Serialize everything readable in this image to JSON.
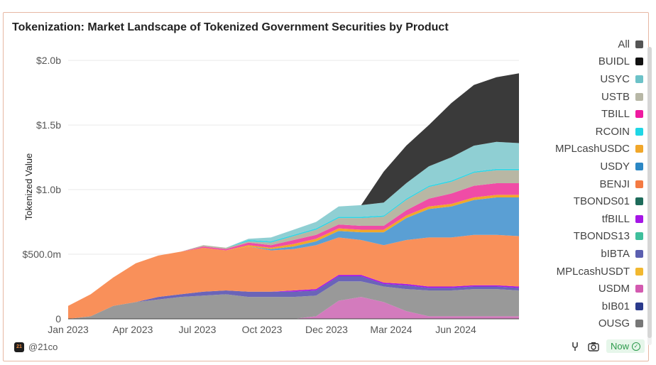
{
  "header": {
    "title": "Tokenization: Market Landscape of Tokenized Government Securities by Product"
  },
  "footer": {
    "source": "@21co",
    "status": "Now",
    "logo_text": "21"
  },
  "chart_data": {
    "type": "area",
    "ylabel": "Tokenized Value",
    "x_ticks": [
      "Jan 2023",
      "Apr 2023",
      "Jul 2023",
      "Oct 2023",
      "Dec 2023",
      "Mar 2024",
      "Jun 2024"
    ],
    "y_ticks": [
      "0",
      "$500.0m",
      "$1.0b",
      "$1.5b",
      "$2.0b"
    ],
    "ylim": [
      0,
      2050000000
    ],
    "legend_position": "right",
    "x": [
      "2023-01",
      "2023-02",
      "2023-03",
      "2023-04",
      "2023-05",
      "2023-06",
      "2023-07",
      "2023-08",
      "2023-09",
      "2023-10",
      "2023-11",
      "2023-12",
      "2024-01",
      "2024-02",
      "2024-03",
      "2024-04",
      "2024-05",
      "2024-06",
      "2024-07",
      "2024-08",
      "2024-09"
    ],
    "series": [
      {
        "name": "USDM",
        "color": "#d37bbd",
        "values": [
          0,
          0,
          0,
          0,
          0,
          0,
          0,
          0,
          0,
          0,
          0,
          0.02,
          0.14,
          0.17,
          0.13,
          0.06,
          0.02,
          0.02,
          0.02,
          0.02,
          0.02
        ]
      },
      {
        "name": "bIB01",
        "color": "#2a3a8c",
        "values": [
          0,
          0,
          0,
          0,
          0,
          0,
          0,
          0,
          0,
          0,
          0,
          0,
          0,
          0,
          0,
          0,
          0,
          0,
          0,
          0,
          0
        ]
      },
      {
        "name": "OUSG",
        "color": "#999999",
        "values": [
          0,
          0.02,
          0.1,
          0.13,
          0.15,
          0.17,
          0.18,
          0.19,
          0.17,
          0.17,
          0.17,
          0.16,
          0.15,
          0.12,
          0.12,
          0.17,
          0.2,
          0.2,
          0.21,
          0.21,
          0.2
        ]
      },
      {
        "name": "bIBTA",
        "color": "#6a64b8",
        "values": [
          0,
          0,
          0,
          0,
          0.02,
          0.02,
          0.03,
          0.03,
          0.04,
          0.04,
          0.04,
          0.04,
          0.04,
          0.04,
          0.02,
          0.03,
          0.02,
          0.02,
          0.02,
          0.02,
          0.02
        ]
      },
      {
        "name": "MPLcashUSDT",
        "color": "#f2b830",
        "values": [
          0,
          0,
          0,
          0,
          0,
          0,
          0,
          0,
          0,
          0,
          0,
          0,
          0,
          0,
          0,
          0,
          0,
          0,
          0,
          0,
          0
        ]
      },
      {
        "name": "tfBILL",
        "color": "#a516e6",
        "values": [
          0,
          0,
          0,
          0,
          0,
          0,
          0,
          0,
          0,
          0,
          0.01,
          0.01,
          0.01,
          0.01,
          0.01,
          0.01,
          0.01,
          0.01,
          0.01,
          0.01,
          0.01
        ]
      },
      {
        "name": "BENJI",
        "color": "#f9905a",
        "values": [
          0.1,
          0.17,
          0.22,
          0.3,
          0.32,
          0.33,
          0.34,
          0.31,
          0.35,
          0.32,
          0.32,
          0.34,
          0.29,
          0.27,
          0.29,
          0.34,
          0.38,
          0.38,
          0.39,
          0.39,
          0.39
        ]
      },
      {
        "name": "USDY",
        "color": "#5a9fd4",
        "values": [
          0,
          0,
          0,
          0,
          0,
          0,
          0,
          0,
          0,
          0.01,
          0.02,
          0.03,
          0.05,
          0.06,
          0.1,
          0.17,
          0.22,
          0.24,
          0.27,
          0.29,
          0.3
        ]
      },
      {
        "name": "TBONDS01",
        "color": "#1e6b5a",
        "values": [
          0,
          0,
          0,
          0,
          0,
          0,
          0,
          0,
          0,
          0,
          0,
          0,
          0,
          0,
          0,
          0,
          0,
          0,
          0,
          0,
          0
        ]
      },
      {
        "name": "MPLcashUSDC",
        "color": "#f1a72a",
        "values": [
          0,
          0,
          0,
          0,
          0,
          0,
          0,
          0,
          0.01,
          0.01,
          0.02,
          0.02,
          0.02,
          0.02,
          0.02,
          0.02,
          0.02,
          0.02,
          0.02,
          0.02,
          0.02
        ]
      },
      {
        "name": "TBILL",
        "color": "#f04ca6",
        "values": [
          0,
          0,
          0,
          0,
          0,
          0,
          0.01,
          0.01,
          0.02,
          0.02,
          0.03,
          0.03,
          0.03,
          0.03,
          0.03,
          0.04,
          0.06,
          0.08,
          0.09,
          0.09,
          0.09
        ]
      },
      {
        "name": "USTB",
        "color": "#b8b7a4",
        "values": [
          0,
          0,
          0,
          0,
          0,
          0,
          0.01,
          0.01,
          0.01,
          0.02,
          0.03,
          0.04,
          0.05,
          0.06,
          0.07,
          0.08,
          0.09,
          0.09,
          0.1,
          0.1,
          0.1
        ]
      },
      {
        "name": "RCOIN",
        "color": "#33d4e3",
        "values": [
          0,
          0,
          0,
          0,
          0,
          0,
          0,
          0,
          0.01,
          0.01,
          0.01,
          0.01,
          0.01,
          0.01,
          0.01,
          0.01,
          0.01,
          0.01,
          0.01,
          0.01,
          0.01
        ]
      },
      {
        "name": "USYC",
        "color": "#8fcfd3",
        "values": [
          0,
          0,
          0,
          0,
          0,
          0,
          0,
          0,
          0.01,
          0.03,
          0.04,
          0.05,
          0.08,
          0.09,
          0.1,
          0.12,
          0.15,
          0.18,
          0.2,
          0.21,
          0.2
        ]
      },
      {
        "name": "BUIDL",
        "color": "#3a3a3a",
        "values": [
          0,
          0,
          0,
          0,
          0,
          0,
          0,
          0,
          0,
          0,
          0,
          0,
          0,
          0,
          0.24,
          0.29,
          0.32,
          0.42,
          0.47,
          0.5,
          0.54
        ]
      }
    ],
    "legend": [
      {
        "name": "All",
        "color": "#555555"
      },
      {
        "name": "BUIDL",
        "color": "#111111"
      },
      {
        "name": "USYC",
        "color": "#6cc2c8"
      },
      {
        "name": "USTB",
        "color": "#b7b7a6"
      },
      {
        "name": "TBILL",
        "color": "#ef1aa0"
      },
      {
        "name": "RCOIN",
        "color": "#1fd6e5"
      },
      {
        "name": "MPLcashUSDC",
        "color": "#f1a72a"
      },
      {
        "name": "USDY",
        "color": "#2c87c4"
      },
      {
        "name": "BENJI",
        "color": "#f47a42"
      },
      {
        "name": "TBONDS01",
        "color": "#1e6b5a"
      },
      {
        "name": "tfBILL",
        "color": "#a516e6"
      },
      {
        "name": "TBONDS13",
        "color": "#3fbf9c"
      },
      {
        "name": "bIBTA",
        "color": "#5b5fb0"
      },
      {
        "name": "MPLcashUSDT",
        "color": "#f2b830"
      },
      {
        "name": "USDM",
        "color": "#d35ab0"
      },
      {
        "name": "bIB01",
        "color": "#2a3a8c"
      },
      {
        "name": "OUSG",
        "color": "#777777"
      }
    ]
  }
}
